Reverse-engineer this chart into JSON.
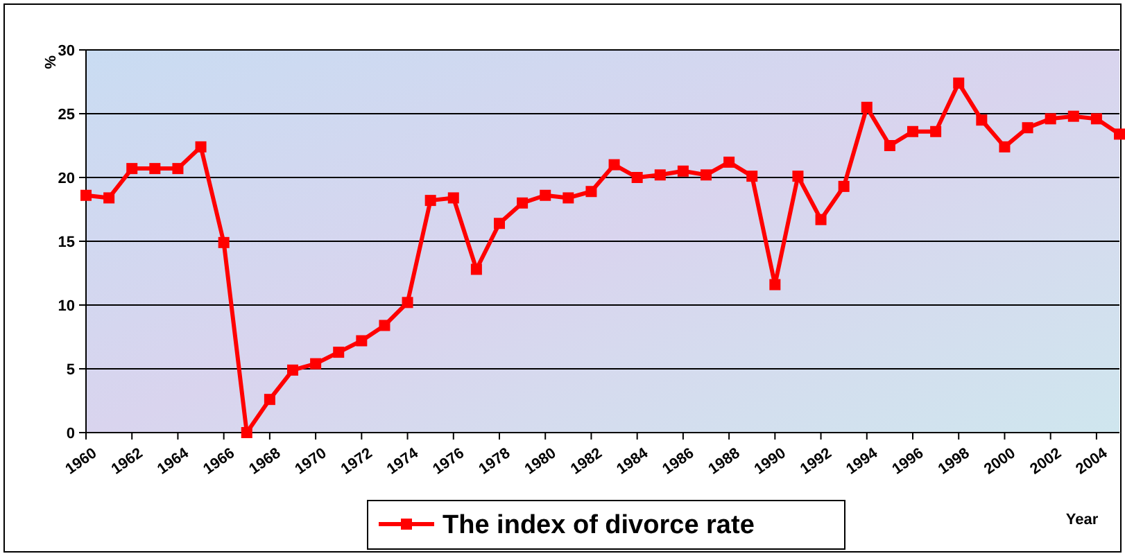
{
  "chart_data": {
    "type": "line",
    "xlabel": "Year",
    "ylabel": "%",
    "x": [
      1960,
      1961,
      1962,
      1963,
      1964,
      1965,
      1966,
      1967,
      1968,
      1969,
      1970,
      1971,
      1972,
      1973,
      1974,
      1975,
      1976,
      1977,
      1978,
      1979,
      1980,
      1981,
      1982,
      1983,
      1984,
      1985,
      1986,
      1987,
      1988,
      1989,
      1990,
      1991,
      1992,
      1993,
      1994,
      1995,
      1996,
      1997,
      1998,
      1999,
      2000,
      2001,
      2002,
      2003,
      2004,
      2005
    ],
    "series": [
      {
        "name": "The index of divorce rate",
        "color": "#ff0000",
        "values": [
          18.6,
          18.4,
          20.7,
          20.7,
          20.7,
          22.4,
          14.9,
          0,
          2.6,
          4.9,
          5.4,
          6.3,
          7.2,
          8.4,
          10.2,
          18.2,
          18.4,
          12.8,
          16.4,
          18.0,
          18.6,
          18.4,
          18.9,
          21.0,
          20.0,
          20.2,
          20.5,
          20.2,
          21.2,
          20.1,
          11.6,
          20.1,
          16.7,
          19.3,
          25.5,
          22.5,
          23.6,
          23.6,
          27.4,
          24.5,
          22.4,
          23.9,
          24.6,
          24.8,
          24.6,
          23.4
        ]
      }
    ],
    "xlim": [
      1960,
      2005
    ],
    "xticks": [
      1960,
      1962,
      1964,
      1966,
      1968,
      1970,
      1972,
      1974,
      1976,
      1978,
      1980,
      1982,
      1984,
      1986,
      1988,
      1990,
      1992,
      1994,
      1996,
      1998,
      2000,
      2002,
      2004
    ],
    "ylim": [
      0,
      30
    ],
    "yticks": [
      0,
      5,
      10,
      15,
      20,
      25,
      30
    ],
    "grid": "y",
    "legend": "bottom",
    "marker": "square",
    "line_style": "solid"
  }
}
